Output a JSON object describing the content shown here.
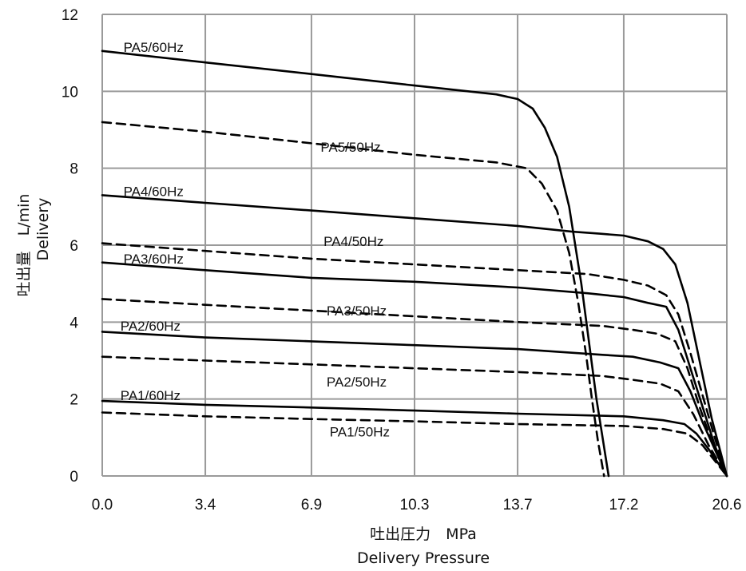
{
  "chart_data": {
    "type": "line",
    "xlabel": "吐出圧力　MPa",
    "xlabel_en": "Delivery Pressure",
    "ylabel": "吐出量　L/min",
    "ylabel_en": "Delivery",
    "xlim": [
      0,
      20.6
    ],
    "ylim": [
      0,
      12
    ],
    "xticks": [
      0.0,
      3.4,
      6.9,
      10.3,
      13.7,
      17.2,
      20.6
    ],
    "xtick_labels": [
      "0.0",
      "3.4",
      "6.9",
      "10.3",
      "13.7",
      "17.2",
      "20.6"
    ],
    "yticks": [
      0,
      2,
      4,
      6,
      8,
      10,
      12
    ],
    "ytick_labels": [
      "0",
      "2",
      "4",
      "6",
      "8",
      "10",
      "12"
    ],
    "grid": true,
    "legend": "none",
    "series": [
      {
        "name": "PA5/60Hz",
        "style": "solid",
        "label_at": [
          0.7,
          11.15
        ],
        "x": [
          0,
          3.4,
          6.9,
          10.3,
          13.0,
          13.7,
          14.2,
          14.6,
          15.0,
          15.4,
          15.8,
          16.1,
          16.3,
          16.5,
          16.6,
          16.7
        ],
        "y": [
          11.05,
          10.75,
          10.45,
          10.15,
          9.92,
          9.8,
          9.55,
          9.05,
          8.3,
          7.0,
          5.0,
          3.2,
          2.0,
          1.0,
          0.5,
          0
        ]
      },
      {
        "name": "PA5/50Hz",
        "style": "dashed",
        "label_at": [
          7.2,
          8.55
        ],
        "x": [
          0,
          3.4,
          6.9,
          10.3,
          13.0,
          14.0,
          14.5,
          15.0,
          15.4,
          15.7,
          15.95,
          16.15,
          16.35,
          16.55
        ],
        "y": [
          9.2,
          8.95,
          8.65,
          8.35,
          8.15,
          8.0,
          7.6,
          6.9,
          5.8,
          4.5,
          3.2,
          2.0,
          0.9,
          0
        ]
      },
      {
        "name": "PA4/60Hz",
        "style": "solid",
        "label_at": [
          0.7,
          7.4
        ],
        "x": [
          0,
          3.4,
          6.9,
          10.3,
          13.7,
          15.5,
          16.4,
          17.2,
          18.0,
          18.5,
          18.9,
          19.3,
          19.7,
          20.1,
          20.6
        ],
        "y": [
          7.3,
          7.1,
          6.9,
          6.7,
          6.5,
          6.35,
          6.3,
          6.25,
          6.1,
          5.9,
          5.5,
          4.5,
          3.0,
          1.5,
          0
        ]
      },
      {
        "name": "PA4/50Hz",
        "style": "dashed",
        "label_at": [
          7.3,
          6.1
        ],
        "x": [
          0,
          3.4,
          6.9,
          10.3,
          13.7,
          16.0,
          17.2,
          18.0,
          18.6,
          19.0,
          19.4,
          19.8,
          20.2,
          20.6
        ],
        "y": [
          6.05,
          5.85,
          5.65,
          5.5,
          5.35,
          5.25,
          5.1,
          4.95,
          4.7,
          4.2,
          3.2,
          2.1,
          1.0,
          0
        ]
      },
      {
        "name": "PA3/60Hz",
        "style": "solid",
        "label_at": [
          0.7,
          5.65
        ],
        "x": [
          0,
          3.4,
          6.9,
          10.3,
          13.7,
          16.0,
          17.2,
          18.0,
          18.6,
          19.0,
          19.4,
          19.8,
          20.2,
          20.6
        ],
        "y": [
          5.55,
          5.35,
          5.15,
          5.05,
          4.9,
          4.75,
          4.65,
          4.5,
          4.4,
          3.8,
          2.8,
          1.8,
          0.8,
          0
        ]
      },
      {
        "name": "PA3/50Hz",
        "style": "dashed",
        "label_at": [
          7.4,
          4.3
        ],
        "x": [
          0,
          3.4,
          6.9,
          10.3,
          13.7,
          16.5,
          17.5,
          18.3,
          18.9,
          19.3,
          19.7,
          20.1,
          20.6
        ],
        "y": [
          4.6,
          4.45,
          4.3,
          4.15,
          4.0,
          3.9,
          3.8,
          3.7,
          3.5,
          2.8,
          1.8,
          0.9,
          0
        ]
      },
      {
        "name": "PA2/60Hz",
        "style": "solid",
        "label_at": [
          0.6,
          3.9
        ],
        "x": [
          0,
          3.4,
          6.9,
          10.3,
          13.7,
          16.5,
          17.5,
          18.4,
          19.0,
          19.4,
          19.8,
          20.2,
          20.6
        ],
        "y": [
          3.75,
          3.6,
          3.5,
          3.4,
          3.3,
          3.15,
          3.1,
          2.95,
          2.8,
          2.2,
          1.4,
          0.7,
          0
        ]
      },
      {
        "name": "PA2/50Hz",
        "style": "dashed",
        "label_at": [
          7.4,
          2.45
        ],
        "x": [
          0,
          3.4,
          6.9,
          10.3,
          13.7,
          16.5,
          17.5,
          18.4,
          19.0,
          19.5,
          20.0,
          20.6
        ],
        "y": [
          3.1,
          3.0,
          2.9,
          2.8,
          2.7,
          2.6,
          2.5,
          2.4,
          2.2,
          1.6,
          0.8,
          0
        ]
      },
      {
        "name": "PA1/60Hz",
        "style": "solid",
        "label_at": [
          0.6,
          2.1
        ],
        "x": [
          0,
          3.4,
          6.9,
          10.3,
          13.7,
          17.2,
          18.5,
          19.2,
          19.6,
          20.0,
          20.3,
          20.6
        ],
        "y": [
          1.95,
          1.85,
          1.78,
          1.7,
          1.62,
          1.55,
          1.45,
          1.35,
          1.1,
          0.7,
          0.35,
          0
        ]
      },
      {
        "name": "PA1/50Hz",
        "style": "dashed",
        "label_at": [
          7.5,
          1.15
        ],
        "x": [
          0,
          3.4,
          6.9,
          10.3,
          13.7,
          17.2,
          18.5,
          19.3,
          19.8,
          20.2,
          20.6
        ],
        "y": [
          1.65,
          1.55,
          1.48,
          1.42,
          1.35,
          1.3,
          1.22,
          1.1,
          0.8,
          0.4,
          0
        ]
      }
    ]
  }
}
